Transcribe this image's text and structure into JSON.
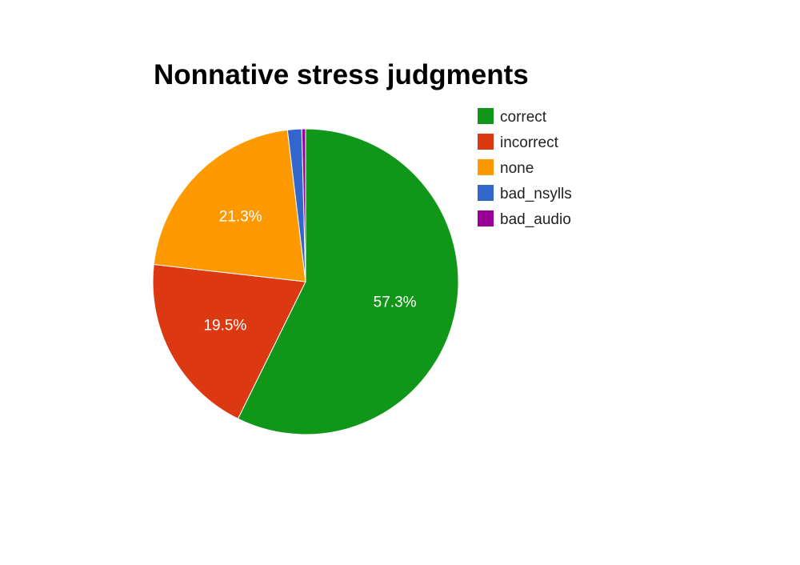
{
  "chart_data": {
    "type": "pie",
    "title": "Nonnative stress judgments",
    "legend_position": "right",
    "slices": [
      {
        "name": "correct",
        "value": 57.3,
        "label": "57.3%",
        "color": "#109618"
      },
      {
        "name": "incorrect",
        "value": 19.5,
        "label": "19.5%",
        "color": "#dc3912"
      },
      {
        "name": "none",
        "value": 21.3,
        "label": "21.3%",
        "color": "#ff9900"
      },
      {
        "name": "bad_nsylls",
        "value": 1.5,
        "label": "",
        "color": "#3366cc"
      },
      {
        "name": "bad_audio",
        "value": 0.4,
        "label": "",
        "color": "#990099"
      }
    ]
  }
}
